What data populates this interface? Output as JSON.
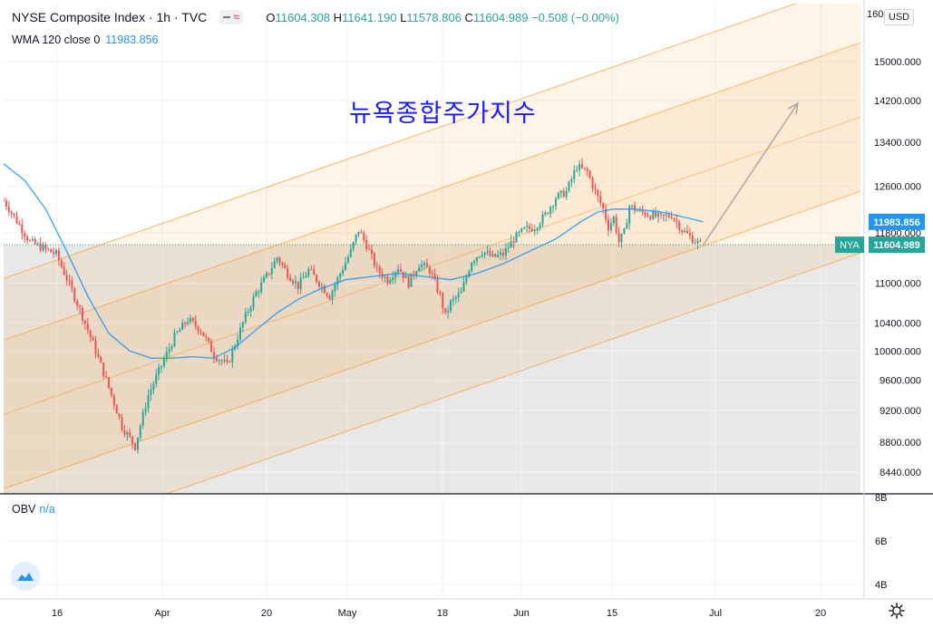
{
  "header": {
    "symbol": "NYSE Composite Index · 1h · TVC",
    "ohlc": {
      "o_key": "O",
      "o": "11604.308",
      "h_key": "H",
      "h": "11641.190",
      "l_key": "L",
      "l": "11578.806",
      "c_key": "C",
      "c": "11604.989",
      "change": "−0.508 (−0.00%)"
    }
  },
  "indicator": {
    "label": "WMA 120 close 0",
    "value": "11983.856"
  },
  "obv": {
    "label": "OBV",
    "value": "n/a"
  },
  "currency_button": "USD",
  "annotation": "뉴욕종합주가지수",
  "colors": {
    "up": "#26a69a",
    "down": "#ef5350",
    "wma": "#2196f3",
    "channel": "#f7a13b",
    "arrow": "#b0a89c",
    "shade": "#e4e4e4",
    "price_line": "#26a69a",
    "annotation": "#1a1aff"
  },
  "chart_data": {
    "type": "candlestick",
    "symbol": "NYA",
    "timeframe": "1h",
    "x_ticks": [
      "16",
      "Apr",
      "20",
      "May",
      "18",
      "Jun",
      "15",
      "Jul",
      "20"
    ],
    "y_ticks": [
      "8440.000",
      "8800.000",
      "9200.000",
      "9600.000",
      "10000.000",
      "10400.000",
      "11000.000",
      "11800.000",
      "12600.000",
      "13400.000",
      "14200.000",
      "15000.000"
    ],
    "y_top_partial": "16000.000",
    "y_scale": "log",
    "ylim": [
      8200,
      16100
    ],
    "obv_ticks": [
      "8B",
      "6B",
      "4B"
    ],
    "last_price": {
      "label": "NYA",
      "value": "11604.989"
    },
    "wma_last": {
      "value": "11983.856"
    },
    "price_path": [
      [
        0,
        12350
      ],
      [
        10,
        11650
      ],
      [
        20,
        11450
      ],
      [
        30,
        10500
      ],
      [
        35,
        10000
      ],
      [
        40,
        9500
      ],
      [
        45,
        9000
      ],
      [
        50,
        8750
      ],
      [
        55,
        9400
      ],
      [
        60,
        9800
      ],
      [
        65,
        10200
      ],
      [
        70,
        10450
      ],
      [
        75,
        10300
      ],
      [
        80,
        9950
      ],
      [
        85,
        9800
      ],
      [
        88,
        10100
      ],
      [
        92,
        10500
      ],
      [
        96,
        10850
      ],
      [
        100,
        11100
      ],
      [
        104,
        11400
      ],
      [
        108,
        11150
      ],
      [
        112,
        10950
      ],
      [
        116,
        11200
      ],
      [
        120,
        11000
      ],
      [
        124,
        10800
      ],
      [
        128,
        11150
      ],
      [
        132,
        11500
      ],
      [
        135,
        11850
      ],
      [
        138,
        11600
      ],
      [
        142,
        11200
      ],
      [
        146,
        11050
      ],
      [
        150,
        11250
      ],
      [
        154,
        11000
      ],
      [
        158,
        11300
      ],
      [
        162,
        11200
      ],
      [
        166,
        10800
      ],
      [
        168,
        10500
      ],
      [
        170,
        10700
      ],
      [
        174,
        10850
      ],
      [
        178,
        11350
      ],
      [
        182,
        11500
      ],
      [
        186,
        11400
      ],
      [
        190,
        11450
      ],
      [
        194,
        11700
      ],
      [
        198,
        11850
      ],
      [
        202,
        11900
      ],
      [
        206,
        12100
      ],
      [
        210,
        12400
      ],
      [
        214,
        12500
      ],
      [
        218,
        12950
      ],
      [
        222,
        12850
      ],
      [
        225,
        12500
      ],
      [
        228,
        12200
      ],
      [
        230,
        11900
      ],
      [
        232,
        12050
      ],
      [
        234,
        11650
      ],
      [
        236,
        11800
      ],
      [
        238,
        12250
      ],
      [
        242,
        12150
      ],
      [
        246,
        12100
      ],
      [
        250,
        12050
      ],
      [
        254,
        12100
      ],
      [
        258,
        11850
      ],
      [
        262,
        11700
      ],
      [
        265,
        11605
      ]
    ],
    "wma_path": [
      [
        0,
        13000
      ],
      [
        8,
        12700
      ],
      [
        16,
        12200
      ],
      [
        24,
        11500
      ],
      [
        32,
        10800
      ],
      [
        40,
        10250
      ],
      [
        48,
        10000
      ],
      [
        56,
        9900
      ],
      [
        64,
        9900
      ],
      [
        72,
        9920
      ],
      [
        80,
        9900
      ],
      [
        88,
        10050
      ],
      [
        96,
        10300
      ],
      [
        104,
        10550
      ],
      [
        112,
        10750
      ],
      [
        120,
        10900
      ],
      [
        130,
        11050
      ],
      [
        140,
        11100
      ],
      [
        150,
        11150
      ],
      [
        160,
        11100
      ],
      [
        170,
        11050
      ],
      [
        180,
        11150
      ],
      [
        190,
        11300
      ],
      [
        200,
        11500
      ],
      [
        210,
        11700
      ],
      [
        220,
        12000
      ],
      [
        226,
        12150
      ],
      [
        232,
        12200
      ],
      [
        240,
        12200
      ],
      [
        250,
        12150
      ],
      [
        260,
        12050
      ],
      [
        266,
        11984
      ]
    ],
    "regression_channel": {
      "start": [
        0,
        9150
      ],
      "end": [
        327,
        13900
      ],
      "bands": [
        [
          -1.0,
          8100
        ],
        [
          -0.5,
          8600
        ],
        [
          0,
          0
        ],
        [
          0.5,
          8600
        ],
        [
          1.0,
          8100
        ]
      ]
    },
    "projection_arrow": {
      "from": [
        266,
        11600
      ],
      "to": [
        302,
        14150
      ]
    }
  }
}
